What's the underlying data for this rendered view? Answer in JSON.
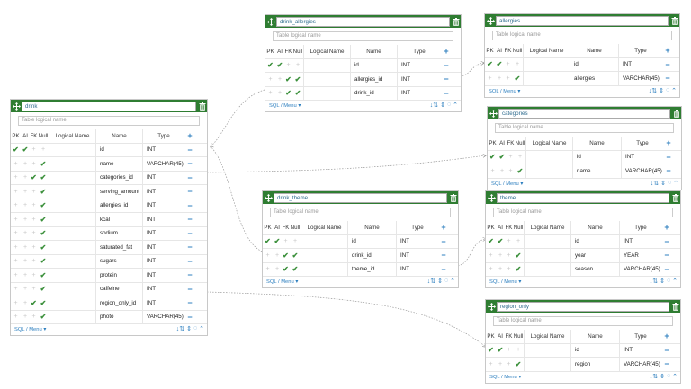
{
  "ui": {
    "logical_placeholder": "Table logical name",
    "columns": {
      "pk": "PK",
      "ai": "AI",
      "fk": "FK",
      "null": "Null",
      "logical": "Logical Name",
      "name": "Name",
      "type": "Type"
    },
    "footer_label": "SQL / Menu",
    "check_glyph": "✔",
    "plus_glyph": "+",
    "minus_glyph": "−",
    "move_glyph": "✥"
  },
  "tables": {
    "drink": {
      "name": "drink",
      "rows": [
        {
          "pk": true,
          "ai": true,
          "fk": false,
          "null": false,
          "name": "id",
          "type": "INT"
        },
        {
          "pk": false,
          "ai": false,
          "fk": false,
          "null": true,
          "name": "name",
          "type": "VARCHAR(45)"
        },
        {
          "pk": false,
          "ai": false,
          "fk": true,
          "null": true,
          "name": "categories_id",
          "type": "INT"
        },
        {
          "pk": false,
          "ai": false,
          "fk": false,
          "null": true,
          "name": "serving_amount",
          "type": "INT"
        },
        {
          "pk": false,
          "ai": false,
          "fk": false,
          "null": true,
          "name": "allergies_id",
          "type": "INT"
        },
        {
          "pk": false,
          "ai": false,
          "fk": false,
          "null": true,
          "name": "kcal",
          "type": "INT"
        },
        {
          "pk": false,
          "ai": false,
          "fk": false,
          "null": true,
          "name": "sodium",
          "type": "INT"
        },
        {
          "pk": false,
          "ai": false,
          "fk": false,
          "null": true,
          "name": "saturated_fat",
          "type": "INT"
        },
        {
          "pk": false,
          "ai": false,
          "fk": false,
          "null": true,
          "name": "sugars",
          "type": "INT"
        },
        {
          "pk": false,
          "ai": false,
          "fk": false,
          "null": true,
          "name": "protein",
          "type": "INT"
        },
        {
          "pk": false,
          "ai": false,
          "fk": false,
          "null": true,
          "name": "caffeine",
          "type": "INT"
        },
        {
          "pk": false,
          "ai": false,
          "fk": true,
          "null": true,
          "name": "region_only_id",
          "type": "INT"
        },
        {
          "pk": false,
          "ai": false,
          "fk": false,
          "null": true,
          "name": "photo",
          "type": "VARCHAR(45)"
        }
      ]
    },
    "drink_allergies": {
      "name": "drink_allergies",
      "rows": [
        {
          "pk": true,
          "ai": true,
          "fk": false,
          "null": false,
          "name": "id",
          "type": "INT"
        },
        {
          "pk": false,
          "ai": false,
          "fk": true,
          "null": true,
          "name": "allergies_id",
          "type": "INT"
        },
        {
          "pk": false,
          "ai": false,
          "fk": true,
          "null": true,
          "name": "drink_id",
          "type": "INT"
        }
      ]
    },
    "allergies": {
      "name": "allergies",
      "rows": [
        {
          "pk": true,
          "ai": true,
          "fk": false,
          "null": false,
          "name": "id",
          "type": "INT"
        },
        {
          "pk": false,
          "ai": false,
          "fk": false,
          "null": true,
          "name": "allergies",
          "type": "VARCHAR(45)"
        }
      ]
    },
    "categories": {
      "name": "categories",
      "rows": [
        {
          "pk": true,
          "ai": true,
          "fk": false,
          "null": false,
          "name": "id",
          "type": "INT"
        },
        {
          "pk": false,
          "ai": false,
          "fk": false,
          "null": true,
          "name": "name",
          "type": "VARCHAR(45)"
        }
      ]
    },
    "drink_theme": {
      "name": "drink_theme",
      "rows": [
        {
          "pk": true,
          "ai": true,
          "fk": false,
          "null": false,
          "name": "id",
          "type": "INT"
        },
        {
          "pk": false,
          "ai": false,
          "fk": true,
          "null": true,
          "name": "drink_id",
          "type": "INT"
        },
        {
          "pk": false,
          "ai": false,
          "fk": true,
          "null": true,
          "name": "theme_id",
          "type": "INT"
        }
      ]
    },
    "theme": {
      "name": "theme",
      "rows": [
        {
          "pk": true,
          "ai": true,
          "fk": false,
          "null": false,
          "name": "id",
          "type": "INT"
        },
        {
          "pk": false,
          "ai": false,
          "fk": false,
          "null": true,
          "name": "year",
          "type": "YEAR"
        },
        {
          "pk": false,
          "ai": false,
          "fk": false,
          "null": true,
          "name": "season",
          "type": "VARCHAR(45)"
        }
      ]
    },
    "region_only": {
      "name": "region_only",
      "rows": [
        {
          "pk": true,
          "ai": true,
          "fk": false,
          "null": false,
          "name": "id",
          "type": "INT"
        },
        {
          "pk": false,
          "ai": false,
          "fk": false,
          "null": true,
          "name": "region",
          "type": "VARCHAR(45)"
        }
      ]
    }
  },
  "colors": {
    "header": "#2f7d32",
    "accent": "#2d7fbf",
    "check": "#3a8f3a",
    "link_line": "#999999"
  }
}
